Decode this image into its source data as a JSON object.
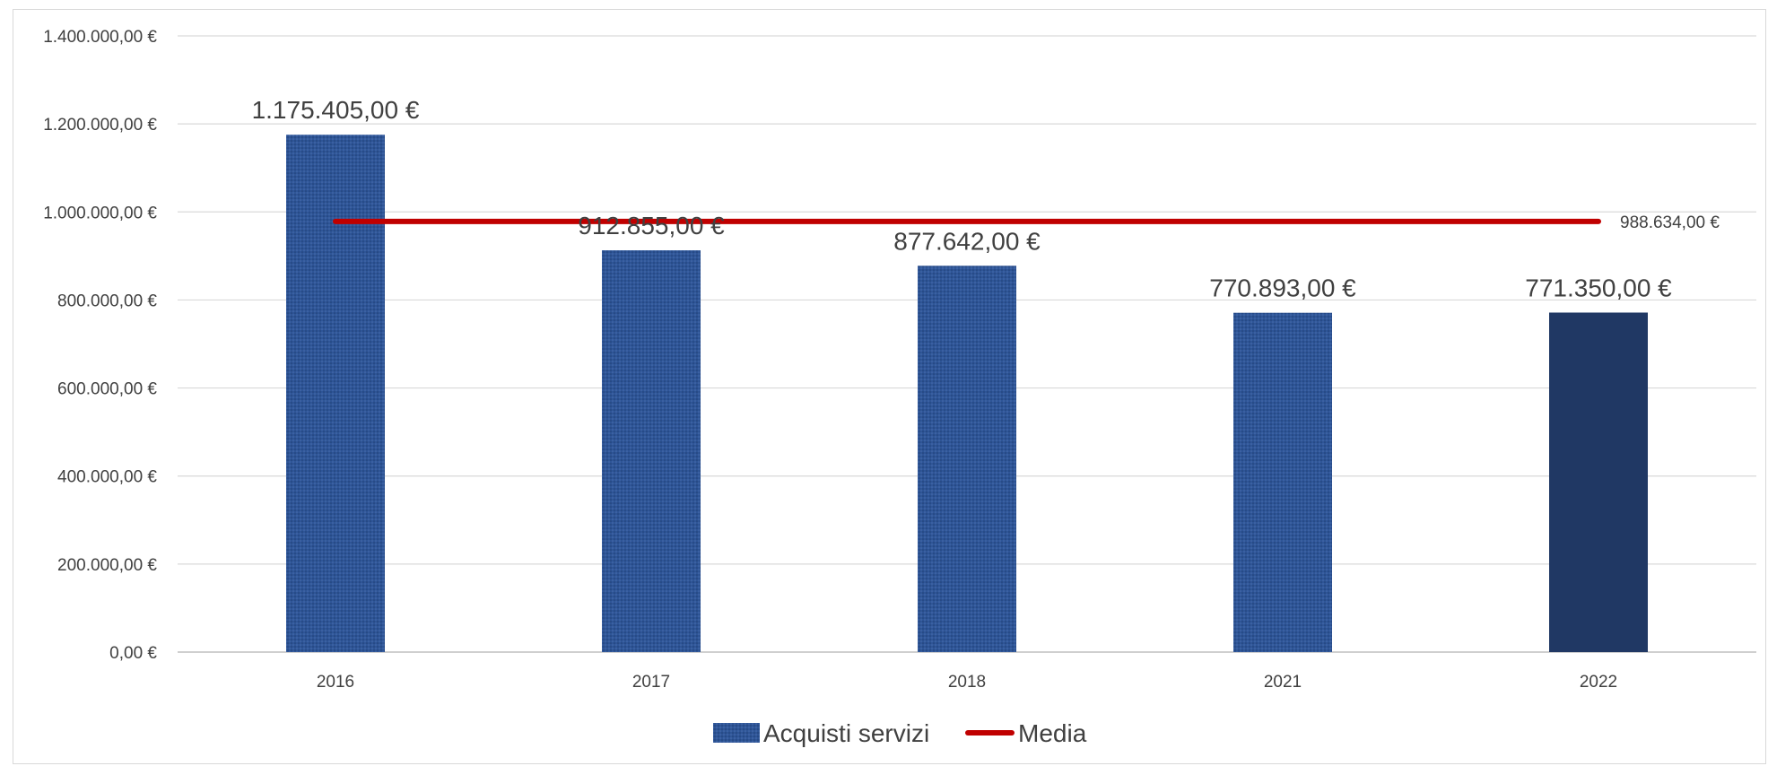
{
  "chart_data": {
    "type": "bar",
    "categories": [
      "2016",
      "2017",
      "2018",
      "2021",
      "2022"
    ],
    "series": [
      {
        "name": "Acquisti servizi",
        "type": "bar",
        "values": [
          1175405,
          912855,
          877642,
          770893,
          771350
        ],
        "labels": [
          "1.175.405,00 €",
          "912.855,00 €",
          "877.642,00 €",
          "770.893,00 €",
          "771.350,00 €"
        ],
        "color": "#2E5597",
        "highlight_color": "#203864",
        "highlight_index": 4
      },
      {
        "name": "Media",
        "type": "line",
        "value": 988634,
        "label": "988.634,00 €",
        "color": "#C00000"
      }
    ],
    "y_ticks": [
      {
        "value": 0,
        "label": "0,00 €"
      },
      {
        "value": 200000,
        "label": "200.000,00 €"
      },
      {
        "value": 400000,
        "label": "400.000,00 €"
      },
      {
        "value": 600000,
        "label": "600.000,00 €"
      },
      {
        "value": 800000,
        "label": "800.000,00 €"
      },
      {
        "value": 1000000,
        "label": "1.000.000,00 €"
      },
      {
        "value": 1200000,
        "label": "1.200.000,00 €"
      },
      {
        "value": 1400000,
        "label": "1.400.000,00 €"
      }
    ],
    "ylim": [
      0,
      1400000
    ],
    "grid": true,
    "legend_position": "bottom",
    "title": "",
    "xlabel": "",
    "ylabel": ""
  }
}
